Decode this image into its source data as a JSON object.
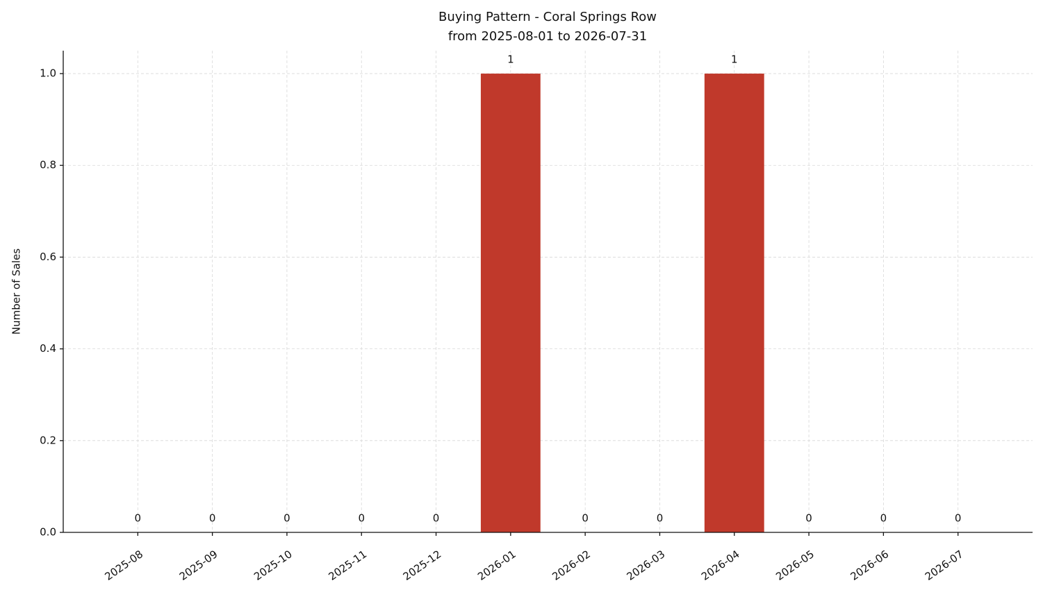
{
  "chart_data": {
    "type": "bar",
    "title": "Buying Pattern - Coral Springs Row",
    "subtitle": "from 2025-08-01 to 2026-07-31",
    "y_label": "Number of Sales",
    "categories": [
      "2025-08",
      "2025-09",
      "2025-10",
      "2025-11",
      "2025-12",
      "2026-01",
      "2026-02",
      "2026-03",
      "2026-04",
      "2026-05",
      "2026-06",
      "2026-07"
    ],
    "values": [
      0,
      0,
      0,
      0,
      0,
      1,
      0,
      0,
      1,
      0,
      0,
      0
    ],
    "color": "#c0392b",
    "ylim": [
      0,
      1.05
    ],
    "yticks": [
      {
        "value": 0,
        "label": "0.0"
      },
      0.2,
      0.4,
      0.6,
      0.8,
      {
        "value": 1,
        "label": "1.0"
      }
    ],
    "grid": true
  }
}
